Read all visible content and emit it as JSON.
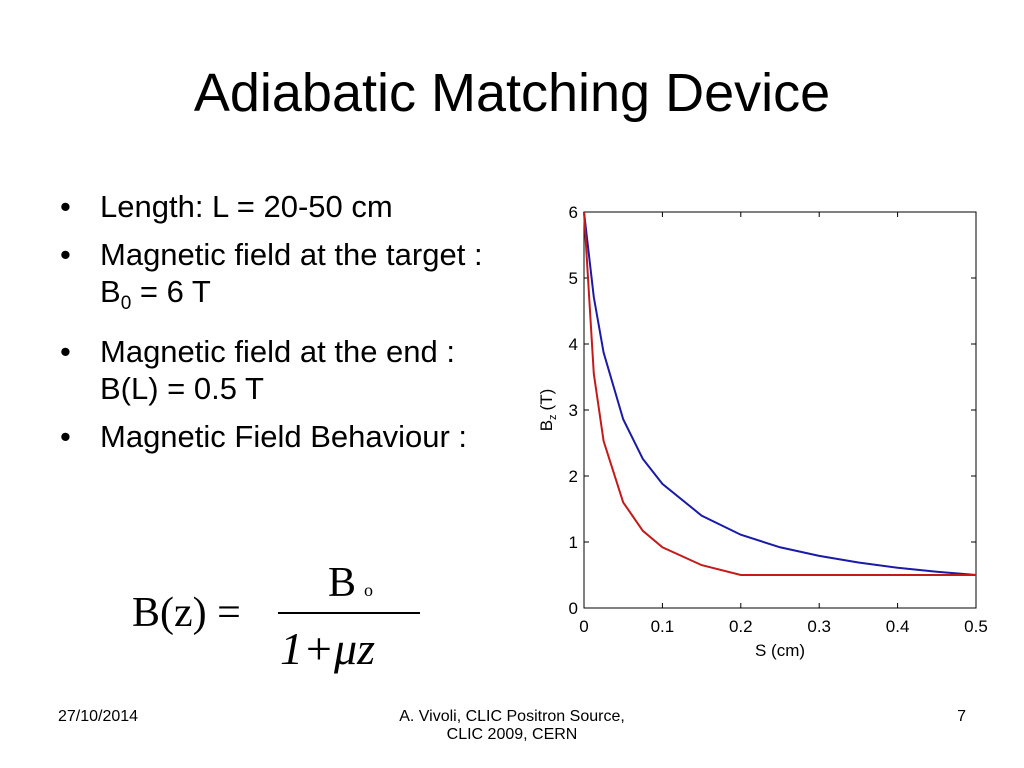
{
  "title": "Adiabatic Matching Device",
  "bullets": [
    {
      "text": "Length: L = 20-50 cm"
    },
    {
      "text": "Magnetic field at the target : B",
      "sub": "0",
      "tail": " = 6 T"
    },
    {
      "text": "Magnetic field at the end : B(L) = 0.5 T"
    },
    {
      "text": "Magnetic Field Behaviour :"
    }
  ],
  "formula": {
    "lhs": "B(z) =",
    "numerator": "B",
    "numerator_sub": "o",
    "denominator": "1+μz"
  },
  "footer": {
    "date": "27/10/2014",
    "center_line1": "A. Vivoli,  CLIC Positron Source,",
    "center_line2": "CLIC 2009, CERN",
    "page": "7"
  },
  "chart_data": {
    "type": "line",
    "x_label": "S (cm)",
    "y_label": "B",
    "y_label_sub": "z",
    "y_label_unit": "(T)",
    "x": [
      0,
      0.0125,
      0.025,
      0.05,
      0.075,
      0.1,
      0.15,
      0.2,
      0.25,
      0.3,
      0.35,
      0.4,
      0.45,
      0.5
    ],
    "series": [
      {
        "color": "#1a1aa8",
        "values": [
          6,
          4.71,
          3.87,
          2.86,
          2.26,
          1.88,
          1.4,
          1.11,
          0.92,
          0.79,
          0.69,
          0.61,
          0.55,
          0.5
        ]
      },
      {
        "color": "#c41a1a",
        "values": [
          6,
          3.55,
          2.53,
          1.6,
          1.17,
          0.92,
          0.65,
          0.5,
          0.5,
          0.5,
          0.5,
          0.5,
          0.5,
          0.5
        ]
      }
    ],
    "xlim": [
      0,
      0.5
    ],
    "xticks": [
      0,
      0.1,
      0.2,
      0.3,
      0.4,
      0.5
    ],
    "ylim": [
      0,
      6
    ],
    "yticks": [
      0,
      1,
      2,
      3,
      4,
      5,
      6
    ],
    "grid": false
  }
}
